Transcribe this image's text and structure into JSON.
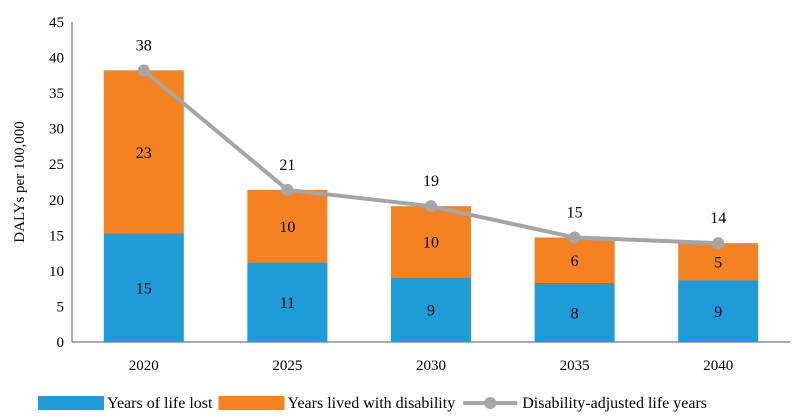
{
  "chart_data": {
    "type": "bar",
    "stacked": true,
    "categories": [
      "2020",
      "2025",
      "2030",
      "2035",
      "2040"
    ],
    "series": [
      {
        "name": "Years of life lost",
        "type": "bar",
        "color": "#1f9bd7",
        "values": [
          15.3,
          11.2,
          9.1,
          8.3,
          8.7
        ],
        "labels": [
          "15",
          "11",
          "9",
          "8",
          "9"
        ]
      },
      {
        "name": "Years lived with disability",
        "type": "bar",
        "color": "#f58220",
        "values": [
          22.9,
          10.2,
          10.0,
          6.4,
          5.2
        ],
        "labels": [
          "23",
          "10",
          "10",
          "6",
          "5"
        ]
      },
      {
        "name": "Disability-adjusted life years",
        "type": "line",
        "color": "#a5a5a5",
        "values": [
          38.2,
          21.4,
          19.1,
          14.7,
          13.9
        ],
        "labels": [
          "38",
          "21",
          "19",
          "15",
          "14"
        ]
      }
    ],
    "ylabel": "DALYs per 100,000",
    "xlabel": "",
    "ylim": [
      0,
      45
    ],
    "yticks": [
      "0",
      "5",
      "10",
      "15",
      "20",
      "25",
      "30",
      "35",
      "40",
      "45"
    ],
    "grid": false,
    "legend": "bottom"
  }
}
